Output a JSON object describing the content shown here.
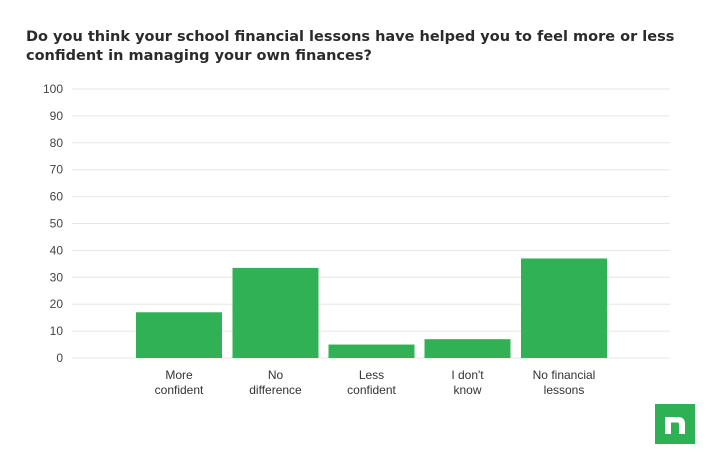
{
  "chart_data": {
    "type": "bar",
    "title_lines": [
      "Do you think your school financial lessons have helped you to feel more or less",
      "confident in managing your own finances?"
    ],
    "categories": [
      [
        "More",
        "confident"
      ],
      [
        "No",
        "difference"
      ],
      [
        "Less",
        "confident"
      ],
      [
        "I don't",
        "know"
      ],
      [
        "No financial",
        "lessons"
      ]
    ],
    "values": [
      17,
      33.5,
      5,
      7,
      37
    ],
    "ylim": [
      0,
      100
    ],
    "yticks": [
      0,
      10,
      20,
      30,
      40,
      50,
      60,
      70,
      80,
      90,
      100
    ],
    "grid": true,
    "bar_color": "#31b155",
    "xlabel": "",
    "ylabel": ""
  },
  "logo": {
    "name": "logo-n-icon",
    "color": "#2db154"
  }
}
